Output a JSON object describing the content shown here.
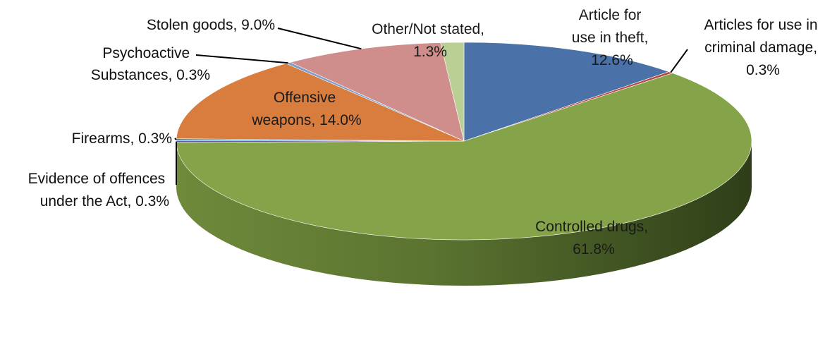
{
  "chart_data": {
    "type": "pie",
    "style": "3d",
    "slices": [
      {
        "label": "Article for use in theft",
        "value": 12.6,
        "text": "Article for use in theft, 12.6%",
        "color": "#4a72a8"
      },
      {
        "label": "Articles for use in criminal damage",
        "value": 0.3,
        "text": "Articles for use in criminal damage, 0.3%",
        "color": "#b7463f"
      },
      {
        "label": "Controlled drugs",
        "value": 61.8,
        "text": "Controlled drugs, 61.8%",
        "color": "#85a449"
      },
      {
        "label": "Evidence of offences under the Act",
        "value": 0.3,
        "text": "Evidence of offences under the Act, 0.3%",
        "color": "#6d56a3"
      },
      {
        "label": "Firearms",
        "value": 0.3,
        "text": "Firearms, 0.3%",
        "color": "#3e8fae"
      },
      {
        "label": "Offensive weapons",
        "value": 14.0,
        "text": "Offensive weapons, 14.0%",
        "color": "#d87d3d"
      },
      {
        "label": "Psychoactive Substances",
        "value": 0.3,
        "text": "Psychoactive Substances, 0.3%",
        "color": "#7e9dc9"
      },
      {
        "label": "Stolen goods",
        "value": 9.0,
        "text": "Stolen goods, 9.0%",
        "color": "#cf8e8c"
      },
      {
        "label": "Other/Not stated",
        "value": 1.3,
        "text": "Other/Not stated, 1.3%",
        "color": "#b9cf93"
      }
    ]
  }
}
